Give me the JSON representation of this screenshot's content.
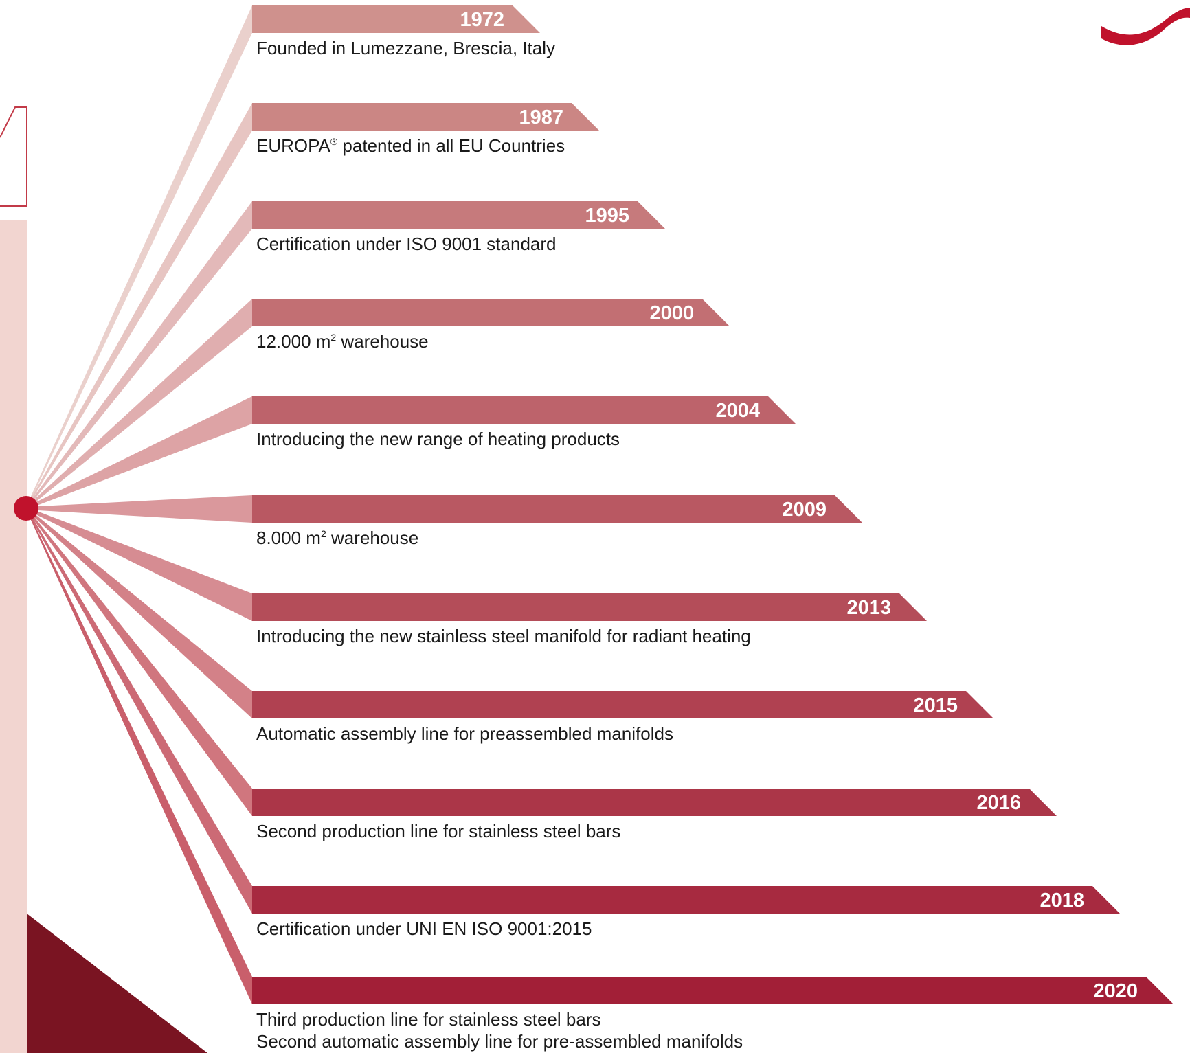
{
  "colors": {
    "hub": "#c0122c",
    "left_band": "#f2d5d0",
    "dark_corner": "#7a1422",
    "outline_numeral": "#c23a48",
    "logo_swoosh": "#c0122c",
    "ribbon_first": "#cf918d",
    "ribbon_last": "#a21f37",
    "fan_first": "#ead0cc",
    "fan_last": "#c95f6b"
  },
  "icons": {
    "logo": "swoosh-logo-icon",
    "page_numeral": "outline-numeral-1-icon"
  },
  "timeline": [
    {
      "year": "1972",
      "lines": [
        {
          "segments": [
            {
              "text": "Founded in Lumezzane, Brescia, Italy"
            }
          ]
        }
      ]
    },
    {
      "year": "1987",
      "lines": [
        {
          "segments": [
            {
              "text": "EUROPA"
            },
            {
              "text": "®",
              "sup": true
            },
            {
              "text": " patented in all EU Countries"
            }
          ]
        }
      ]
    },
    {
      "year": "1995",
      "lines": [
        {
          "segments": [
            {
              "text": "Certification under ISO 9001 standard"
            }
          ]
        }
      ]
    },
    {
      "year": "2000",
      "lines": [
        {
          "segments": [
            {
              "text": "12.000 m"
            },
            {
              "text": "2",
              "sup": true
            },
            {
              "text": " warehouse"
            }
          ]
        }
      ]
    },
    {
      "year": "2004",
      "lines": [
        {
          "segments": [
            {
              "text": "Introducing the new range of heating products"
            }
          ]
        }
      ]
    },
    {
      "year": "2009",
      "lines": [
        {
          "segments": [
            {
              "text": "8.000 m"
            },
            {
              "text": "2",
              "sup": true
            },
            {
              "text": " warehouse"
            }
          ]
        }
      ]
    },
    {
      "year": "2013",
      "lines": [
        {
          "segments": [
            {
              "text": "Introducing the new stainless steel manifold for radiant heating"
            }
          ]
        }
      ]
    },
    {
      "year": "2015",
      "lines": [
        {
          "segments": [
            {
              "text": "Automatic assembly line for preassembled manifolds"
            }
          ]
        }
      ]
    },
    {
      "year": "2016",
      "lines": [
        {
          "segments": [
            {
              "text": "Second production line for stainless steel bars"
            }
          ]
        }
      ]
    },
    {
      "year": "2018",
      "lines": [
        {
          "segments": [
            {
              "text": "Certification under UNI EN ISO 9001:2015"
            }
          ]
        }
      ]
    },
    {
      "year": "2020",
      "lines": [
        {
          "segments": [
            {
              "text": "Third production line for stainless steel bars"
            }
          ]
        },
        {
          "segments": [
            {
              "text": "Second automatic assembly line for pre-assembled manifolds"
            }
          ]
        }
      ]
    }
  ]
}
